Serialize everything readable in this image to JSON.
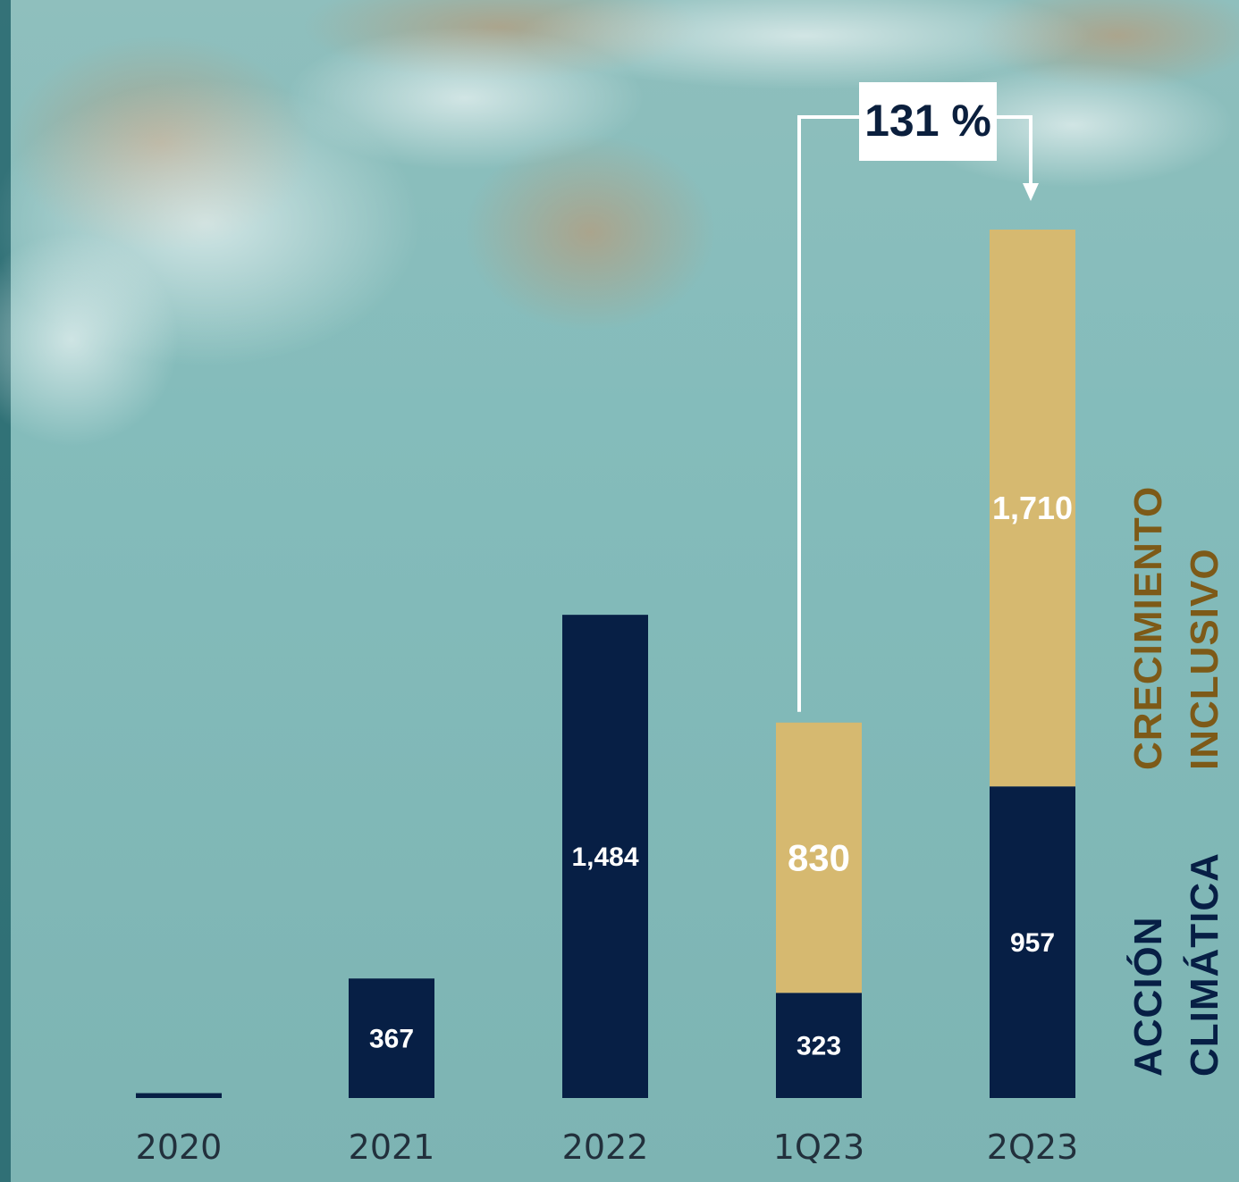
{
  "chart_data": {
    "type": "bar",
    "stacked": true,
    "categories": [
      "2020",
      "2021",
      "2022",
      "1Q23",
      "2Q23"
    ],
    "series": [
      {
        "name": "ACCIÓN CLIMÁTICA",
        "color": "#071f45",
        "values": [
          15,
          367,
          1484,
          323,
          957
        ],
        "labels": [
          "",
          "367",
          "1,484",
          "323",
          "957"
        ]
      },
      {
        "name": "CRECIMIENTO INCLUSIVO",
        "color": "#d6b970",
        "values": [
          0,
          0,
          0,
          830,
          1710
        ],
        "labels": [
          "",
          "",
          "",
          "830",
          "1,710"
        ]
      }
    ],
    "ylim": [
      0,
      2667
    ],
    "grid": false,
    "legend": {
      "placement": "right-vertical",
      "line1": [
        "ACCIÓN",
        "CLIMÁTICA"
      ],
      "line2": [
        "CRECIMIENTO",
        "INCLUSIVO"
      ]
    },
    "annotation": {
      "text": "131 %",
      "from": "1Q23",
      "to": "2Q23"
    }
  },
  "colors": {
    "navy": "#071f45",
    "gold": "#d6b970",
    "legend_gold": "#7d5a18",
    "legend_navy": "#071f45",
    "background": "#7fbab8"
  }
}
